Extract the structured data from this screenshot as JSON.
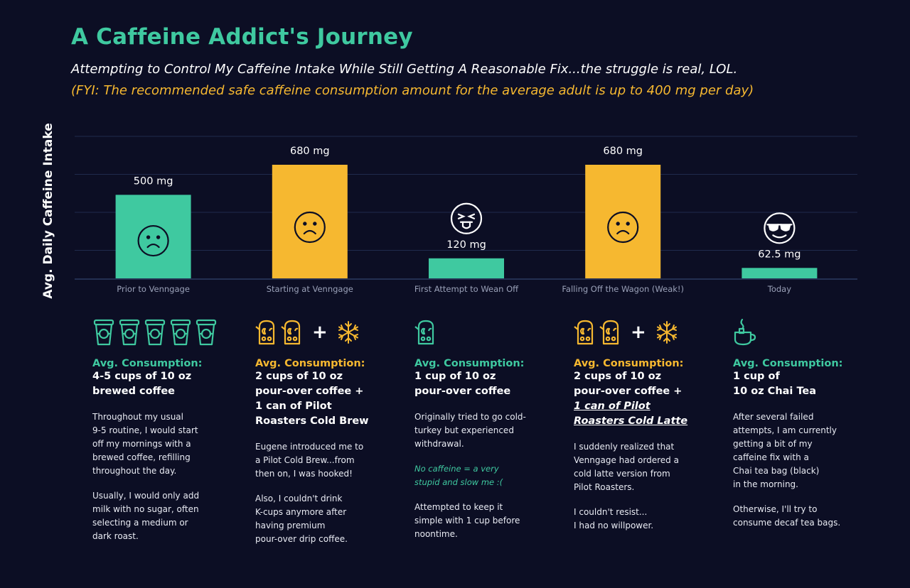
{
  "title": "A Caffeine Addict's Journey",
  "subtitle": "Attempting to Control My Caffeine Intake While Still Getting A Reasonable Fix...the struggle is real, LOL.",
  "fyi": "(FYI: The recommended safe caffeine consumption amount for the average adult is up to 400 mg per day)",
  "chart_data": {
    "type": "bar",
    "ylabel": "Avg. Daily Caffeine Intake",
    "categories": [
      "Prior to Venngage",
      "Starting at Venngage",
      "First Attempt to Wean Off",
      "Falling Off the Wagon (Weak!)",
      "Today"
    ],
    "values": [
      500,
      680,
      120,
      680,
      62.5
    ],
    "value_labels": [
      "500 mg",
      "680 mg",
      "120 mg",
      "680 mg",
      "62.5 mg"
    ],
    "bar_colors": [
      "#3fc9a0",
      "#f6b830",
      "#3fc9a0",
      "#f6b830",
      "#3fc9a0"
    ],
    "face_icons": [
      "sad-face-icon",
      "sad-face-icon",
      "tongue-out-face-icon",
      "sad-face-icon",
      "sunglasses-face-icon"
    ],
    "ylim": [
      0,
      850
    ],
    "grid": true,
    "axis_line_color": "#2b3a62"
  },
  "columns": [
    {
      "icons": [
        "coffee-cup-icon",
        "coffee-cup-icon",
        "coffee-cup-icon",
        "coffee-cup-icon",
        "coffee-cup-icon"
      ],
      "color": "#3fc9a0",
      "avg_label": "Avg. Consumption:",
      "detail_1": "4-5 cups of 10 oz",
      "detail_2": "brewed coffee",
      "para_1": "Throughout my usual\n9-5 routine, I would start\noff my mornings with a\nbrewed coffee, refilling\nthroughout the day.",
      "para_2": "Usually, I would only add\nmilk with no sugar, often\nselecting a medium or\ndark roast."
    },
    {
      "icons": [
        "pour-over-kettle-icon",
        "pour-over-kettle-icon"
      ],
      "plus": "+",
      "extra_icon": "snowflake-icon",
      "color": "#f6b830",
      "avg_label": "Avg. Consumption:",
      "detail_1": "2 cups of 10 oz",
      "detail_2": "pour-over coffee +",
      "detail_3": "1 can of Pilot",
      "detail_4": "Roasters Cold Brew",
      "para_1": "Eugene introduced me to\na Pilot Cold Brew...from\nthen on, I was hooked!",
      "para_2": "Also,  I couldn't drink\nK-cups anymore after\nhaving premium\npour-over drip coffee."
    },
    {
      "icons": [
        "pour-over-kettle-icon"
      ],
      "color": "#3fc9a0",
      "avg_label": "Avg. Consumption:",
      "detail_1": "1 cup of 10 oz",
      "detail_2": "pour-over coffee",
      "para_1": "Originally tried to go cold-\nturkey but experienced\nwithdrawal.",
      "note": "No caffeine = a very\nstupid and slow me :(",
      "para_2": "Attempted to keep it\nsimple with 1 cup before\nnoontime."
    },
    {
      "icons": [
        "pour-over-kettle-icon",
        "pour-over-kettle-icon"
      ],
      "plus": "+",
      "extra_icon": "snowflake-icon",
      "color": "#f6b830",
      "avg_label": "Avg. Consumption:",
      "detail_1": "2 cups of 10 oz",
      "detail_2": "pour-over coffee +",
      "detail_3": "1 can of Pilot",
      "detail_4": "Roasters Cold Latte",
      "para_1": "I suddenly realized that\nVenngage had ordered a\ncold latte version from\nPilot Roasters.",
      "para_2": "I couldn't resist...\nI had no willpower."
    },
    {
      "icons": [
        "tea-cup-icon"
      ],
      "color": "#3fc9a0",
      "avg_label": "Avg. Consumption:",
      "detail_1": "1 cup of",
      "detail_2": "10 oz Chai Tea",
      "para_1": "After several failed\nattempts, I am currently\ngetting a bit of my\ncaffeine fix with a\nChai tea bag (black)\nin the morning.",
      "para_2": "Otherwise, I'll try to\nconsume decaf tea bags."
    }
  ]
}
